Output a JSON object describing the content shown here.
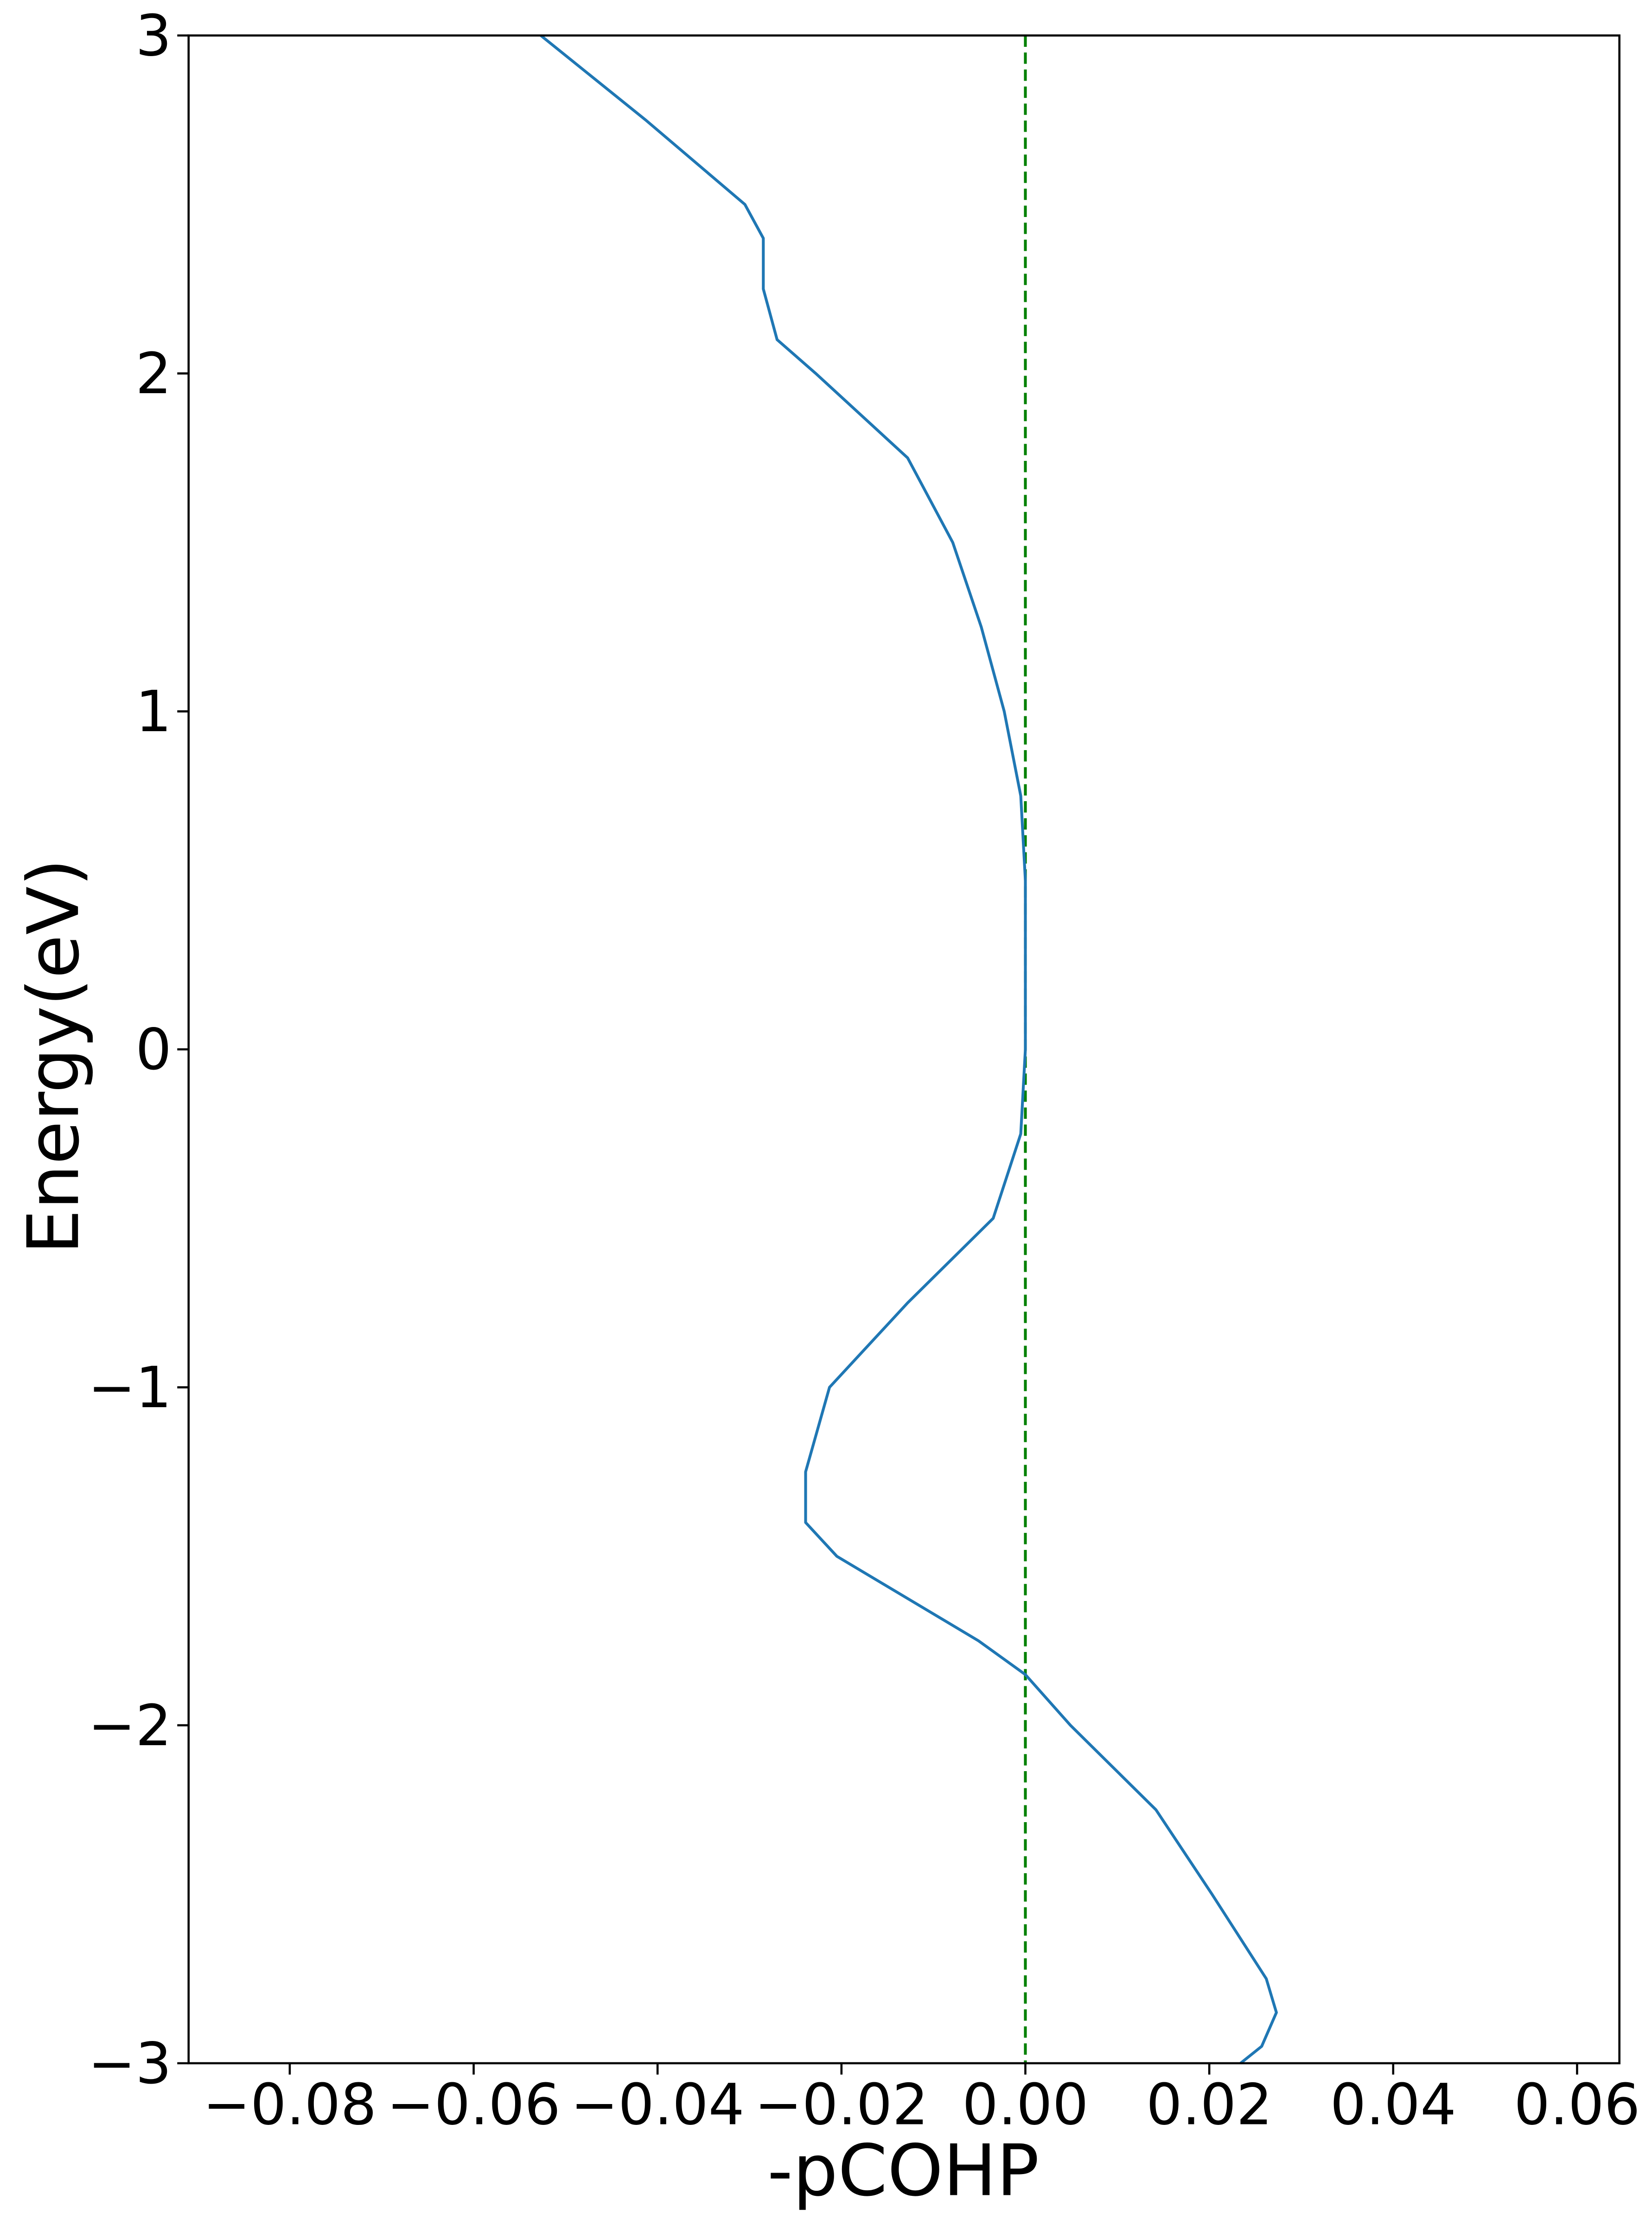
{
  "chart_data": {
    "type": "line",
    "x_label": "-pCOHP",
    "y_label": "Energy(eV)",
    "xlim": [
      -0.091,
      0.0646
    ],
    "ylim": [
      -3,
      3
    ],
    "xticks": [
      {
        "value": -0.08,
        "label": "−0.08"
      },
      {
        "value": -0.06,
        "label": "−0.06"
      },
      {
        "value": -0.04,
        "label": "−0.04"
      },
      {
        "value": -0.02,
        "label": "−0.02"
      },
      {
        "value": 0,
        "label": "0.00"
      },
      {
        "value": 0.02,
        "label": "0.02"
      },
      {
        "value": 0.04,
        "label": "0.04"
      },
      {
        "value": 0.06,
        "label": "0.06"
      }
    ],
    "yticks": [
      {
        "value": -3,
        "label": "−3"
      },
      {
        "value": -2,
        "label": "−2"
      },
      {
        "value": -1,
        "label": "−1"
      },
      0,
      1,
      2,
      3
    ],
    "vline": 0,
    "vline_color": "#008000",
    "vline_style": "dashed",
    "series": [
      {
        "color": "#1f77b4",
        "x": [
          -0.0527,
          -0.0413,
          -0.0305,
          -0.0285,
          -0.0285,
          -0.027,
          -0.0228,
          -0.0128,
          -0.0079,
          -0.0048,
          -0.0023,
          -0.0005,
          0,
          0,
          -0.0005,
          -0.0035,
          -0.0128,
          -0.0213,
          -0.0239,
          -0.0239,
          -0.0205,
          -0.0051,
          0,
          0.0049,
          0.0142,
          0.0203,
          0.0262,
          0.0273,
          0.0257,
          0.0234
        ],
        "values": [
          3,
          2.75,
          2.5,
          2.4,
          2.25,
          2.1,
          2.0,
          1.75,
          1.5,
          1.25,
          1.0,
          0.75,
          0.5,
          0,
          -0.25,
          -0.5,
          -0.75,
          -1.0,
          -1.25,
          -1.4,
          -1.5,
          -1.75,
          -1.85,
          -2.0,
          -2.25,
          -2.5,
          -2.75,
          -2.85,
          -2.95,
          -3.0
        ]
      }
    ]
  }
}
